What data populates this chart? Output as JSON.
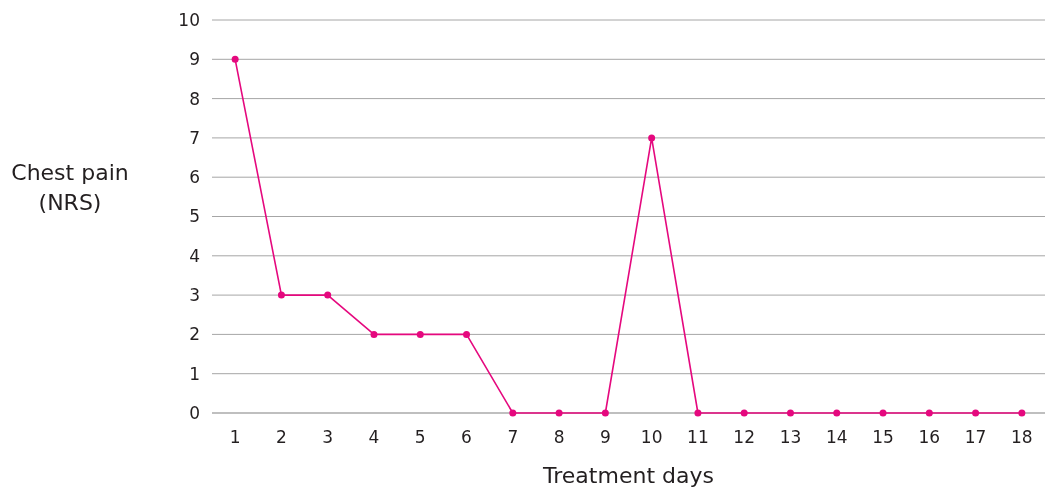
{
  "chart_data": {
    "type": "line",
    "xlabel": "Treatment days",
    "ylabel": "Chest pain (NRS)",
    "categories": [
      "1",
      "2",
      "3",
      "4",
      "5",
      "6",
      "7",
      "8",
      "9",
      "10",
      "11",
      "12",
      "13",
      "14",
      "15",
      "16",
      "17",
      "18"
    ],
    "series": [
      {
        "color": "#e5087e",
        "values": [
          9,
          3,
          3,
          2,
          2,
          2,
          0,
          0,
          0,
          7,
          0,
          0,
          0,
          0,
          0,
          0,
          0,
          0
        ]
      }
    ],
    "ylim": [
      0,
      10
    ],
    "yticks": [
      0,
      1,
      2,
      3,
      4,
      5,
      6,
      7,
      8,
      9,
      10
    ],
    "grid": "y",
    "marker": "circle"
  }
}
